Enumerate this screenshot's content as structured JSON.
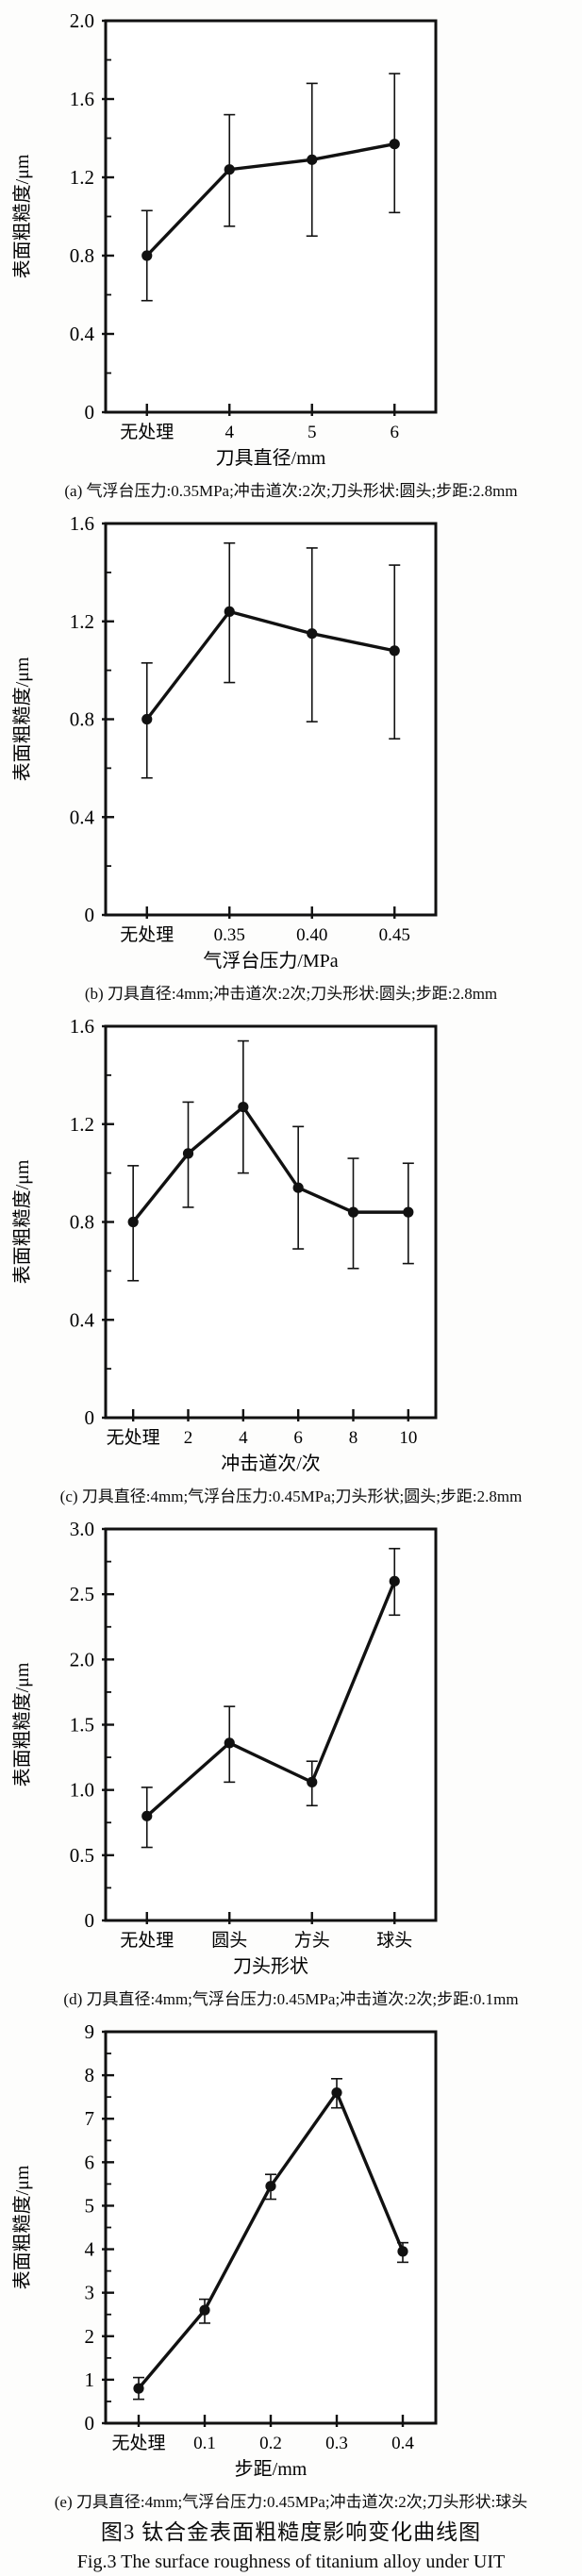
{
  "figure": {
    "caption_zh": "图3  钛合金表面粗糙度影响变化曲线图",
    "caption_en": "Fig.3  The surface roughness of titanium alloy under UIT"
  },
  "colors": {
    "ink": "#111111",
    "background": "#fdfdfc"
  },
  "chart_data": [
    {
      "id": "a",
      "type": "line",
      "caption": "(a) 气浮台压力:0.35MPa;冲击道次:2次;刀头形状:圆头;步距:2.8mm",
      "categories": [
        "无处理",
        "4",
        "5",
        "6"
      ],
      "values": [
        0.8,
        1.24,
        1.29,
        1.37
      ],
      "err_low": [
        0.57,
        0.95,
        0.9,
        1.02
      ],
      "err_high": [
        1.03,
        1.52,
        1.68,
        1.73
      ],
      "xlabel": "刀具直径/mm",
      "ylabel": "表面粗糙度/μm",
      "ylim": [
        0,
        2.0
      ],
      "yticks": [
        0,
        0.4,
        0.8,
        1.2,
        1.6,
        2.0
      ],
      "ytick_labels": [
        "0",
        "0.4",
        "0.8",
        "1.2",
        "1.6",
        "2.0"
      ],
      "yminor_step": 0.2,
      "grid": false,
      "legend": "none",
      "marker": "filled-circle"
    },
    {
      "id": "b",
      "type": "line",
      "caption": "(b) 刀具直径:4mm;冲击道次:2次;刀头形状:圆头;步距:2.8mm",
      "categories": [
        "无处理",
        "0.35",
        "0.40",
        "0.45"
      ],
      "values": [
        0.8,
        1.24,
        1.15,
        1.08
      ],
      "err_low": [
        0.56,
        0.95,
        0.79,
        0.72
      ],
      "err_high": [
        1.03,
        1.52,
        1.5,
        1.43
      ],
      "xlabel": "气浮台压力/MPa",
      "ylabel": "表面粗糙度/μm",
      "ylim": [
        0,
        1.6
      ],
      "yticks": [
        0,
        0.4,
        0.8,
        1.2,
        1.6
      ],
      "ytick_labels": [
        "0",
        "0.4",
        "0.8",
        "1.2",
        "1.6"
      ],
      "yminor_step": 0.2,
      "grid": false,
      "legend": "none",
      "marker": "filled-circle"
    },
    {
      "id": "c",
      "type": "line",
      "caption": "(c) 刀具直径:4mm;气浮台压力:0.45MPa;刀头形状;圆头;步距:2.8mm",
      "categories": [
        "无处理",
        "2",
        "4",
        "6",
        "8",
        "10"
      ],
      "values": [
        0.8,
        1.08,
        1.27,
        0.94,
        0.84,
        0.84
      ],
      "err_low": [
        0.56,
        0.86,
        1.0,
        0.69,
        0.61,
        0.63
      ],
      "err_high": [
        1.03,
        1.29,
        1.54,
        1.19,
        1.06,
        1.04
      ],
      "xlabel": "冲击道次/次",
      "ylabel": "表面粗糙度/μm",
      "ylim": [
        0,
        1.6
      ],
      "yticks": [
        0,
        0.4,
        0.8,
        1.2,
        1.6
      ],
      "ytick_labels": [
        "0",
        "0.4",
        "0.8",
        "1.2",
        "1.6"
      ],
      "yminor_step": 0.2,
      "grid": false,
      "legend": "none",
      "marker": "filled-circle"
    },
    {
      "id": "d",
      "type": "line",
      "caption": "(d) 刀具直径:4mm;气浮台压力:0.45MPa;冲击道次:2次;步距:0.1mm",
      "categories": [
        "无处理",
        "圆头",
        "方头",
        "球头"
      ],
      "values": [
        0.8,
        1.36,
        1.06,
        2.6
      ],
      "err_low": [
        0.56,
        1.06,
        0.88,
        2.34
      ],
      "err_high": [
        1.02,
        1.64,
        1.22,
        2.85
      ],
      "xlabel": "刀头形状",
      "ylabel": "表面粗糙度/μm",
      "ylim": [
        0,
        3.0
      ],
      "yticks": [
        0,
        0.5,
        1.0,
        1.5,
        2.0,
        2.5,
        3.0
      ],
      "ytick_labels": [
        "0",
        "0.5",
        "1.0",
        "1.5",
        "2.0",
        "2.5",
        "3.0"
      ],
      "yminor_step": 0.25,
      "grid": false,
      "legend": "none",
      "marker": "filled-circle"
    },
    {
      "id": "e",
      "type": "line",
      "caption": "(e) 刀具直径:4mm;气浮台压力:0.45MPa;冲击道次:2次;刀头形状:球头",
      "categories": [
        "无处理",
        "0.1",
        "0.2",
        "0.3",
        "0.4"
      ],
      "values": [
        0.8,
        2.6,
        5.45,
        7.6,
        3.95
      ],
      "err_low": [
        0.55,
        2.3,
        5.15,
        7.25,
        3.7
      ],
      "err_high": [
        1.05,
        2.85,
        5.72,
        7.92,
        4.15
      ],
      "xlabel": "步距/mm",
      "ylabel": "表面粗糙度/μm",
      "ylim": [
        0,
        9
      ],
      "yticks": [
        0,
        1,
        2,
        3,
        4,
        5,
        6,
        7,
        8,
        9
      ],
      "ytick_labels": [
        "0",
        "1",
        "2",
        "3",
        "4",
        "5",
        "6",
        "7",
        "8",
        "9"
      ],
      "yminor_step": 0.5,
      "grid": false,
      "legend": "none",
      "marker": "filled-circle"
    }
  ]
}
